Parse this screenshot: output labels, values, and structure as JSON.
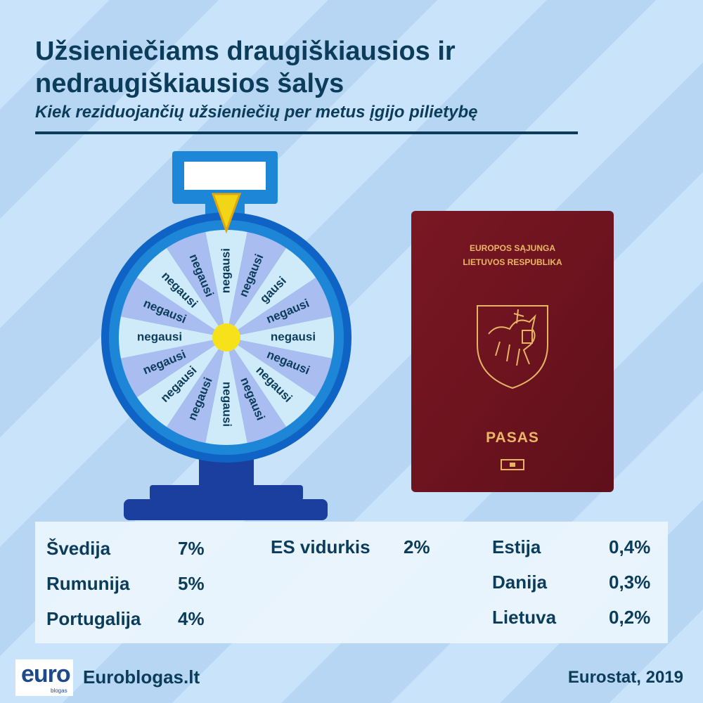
{
  "header": {
    "title": "Užsieniečiams draugiškiausios ir nedraugiškiausios šalys",
    "subtitle": "Kiek reziduojančių užsieniečių per metus įgijo pilietybę"
  },
  "wheel": {
    "segments": [
      "negausi",
      "negausi",
      "gausi",
      "negausi",
      "negausi",
      "negausi",
      "negausi",
      "negausi",
      "negausi",
      "negausi",
      "negausi",
      "negausi",
      "negausi",
      "negausi",
      "negausi",
      "negausi"
    ],
    "colors": {
      "light": "#cfeaf9",
      "dark": "#a9bdf1",
      "rim": "#1e86d6",
      "rim_outer": "#0f63c4",
      "hub": "#f6e11a",
      "pointer": "#f2d516",
      "stand": "#1b3f9e"
    }
  },
  "passport": {
    "line1": "EUROPOS SĄJUNGA",
    "line2": "LIETUVOS RESPUBLIKA",
    "label": "PASAS",
    "cover_color": "#6e1420",
    "gold_color": "#e6b464"
  },
  "stats": {
    "left": [
      {
        "country": "Švedija",
        "value": "7%"
      },
      {
        "country": "Rumunija",
        "value": "5%"
      },
      {
        "country": "Portugalija",
        "value": "4%"
      }
    ],
    "middle": {
      "country": "ES vidurkis",
      "value": "2%"
    },
    "right": [
      {
        "country": "Estija",
        "value": "0,4%"
      },
      {
        "country": "Danija",
        "value": "0,3%"
      },
      {
        "country": "Lietuva",
        "value": "0,2%"
      }
    ]
  },
  "footer": {
    "logo_text": "euro",
    "logo_subtext": "blogas",
    "site": "Euroblogas.lt",
    "source": "Eurostat, 2019"
  }
}
